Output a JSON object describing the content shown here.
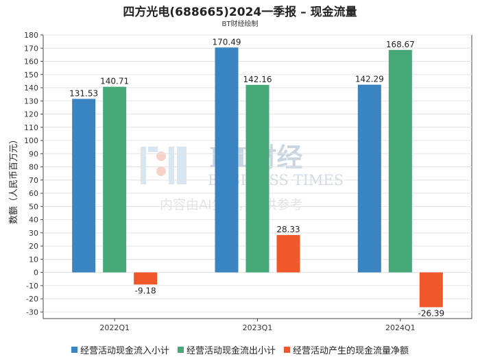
{
  "title": "四方光电(688665)2024一季报 – 现金流量",
  "subtitle": "BT财经绘制",
  "watermark": {
    "brand": "BT财经",
    "brand_en": "BUSINESS TIMES",
    "note": "内容由AI生成，仅供参考"
  },
  "chart_data": {
    "type": "bar",
    "categories": [
      "2022Q1",
      "2023Q1",
      "2024Q1"
    ],
    "ylabel": "数额（人民币百万元）",
    "ylim": [
      -35,
      180
    ],
    "yticks": [
      180,
      170,
      160,
      150,
      140,
      130,
      120,
      110,
      100,
      90,
      80,
      70,
      60,
      50,
      40,
      30,
      20,
      10,
      0,
      -10,
      -20,
      -30
    ],
    "grid": true,
    "legend_position": "bottom",
    "series": [
      {
        "name": "经营活动现金流入小计",
        "color": "#3a84c1",
        "values": [
          131.53,
          170.49,
          142.29
        ]
      },
      {
        "name": "经营活动现金流出小计",
        "color": "#46a876",
        "values": [
          140.71,
          142.16,
          168.67
        ]
      },
      {
        "name": "经营活动产生的现金流量净额",
        "color": "#f0572a",
        "values": [
          -9.18,
          28.33,
          -26.39
        ]
      }
    ]
  }
}
